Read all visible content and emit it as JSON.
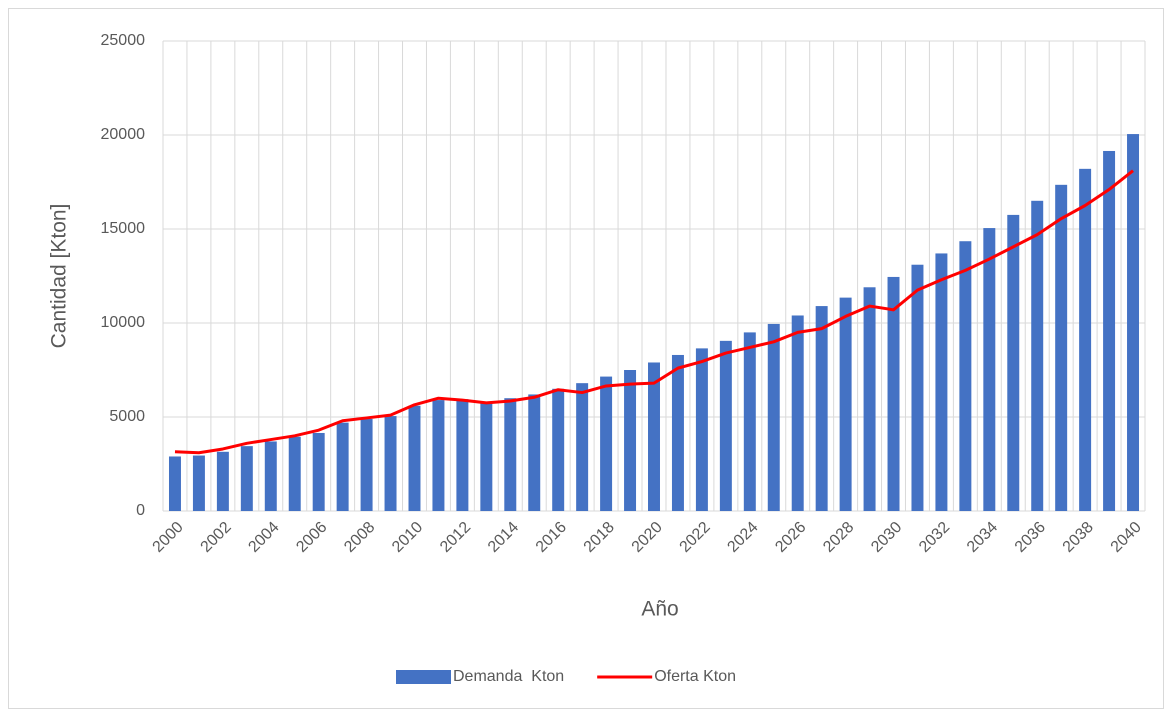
{
  "chart_data": {
    "type": "bar-line",
    "y_label": "Cantidad [Kton]",
    "x_label": "Año",
    "categories": [
      "2000",
      null,
      "2002",
      null,
      "2004",
      null,
      "2006",
      null,
      "2008",
      null,
      "2010",
      null,
      "2012",
      null,
      "2014",
      null,
      "2016",
      null,
      "2018",
      null,
      "2020",
      null,
      "2022",
      null,
      "2024",
      null,
      "2026",
      null,
      "2028",
      null,
      "2030",
      null,
      "2032",
      null,
      "2034",
      null,
      "2036",
      null,
      "2038",
      null,
      "2040"
    ],
    "series": [
      {
        "name": "Demanda  Kton",
        "kind": "bar",
        "color": "#4472c4",
        "values": [
          2900,
          2950,
          3150,
          3450,
          3700,
          3950,
          4150,
          4700,
          4900,
          5050,
          5600,
          5900,
          5950,
          5800,
          6000,
          6200,
          6500,
          6800,
          7150,
          7500,
          7900,
          8300,
          8650,
          9050,
          9500,
          9950,
          10400,
          10900,
          11350,
          11900,
          12450,
          13100,
          13700,
          14350,
          15050,
          15750,
          16500,
          17350,
          18200,
          19150,
          20050
        ]
      },
      {
        "name": "Oferta Kton",
        "kind": "line",
        "color": "#ff0000",
        "values": [
          3150,
          3100,
          3300,
          3600,
          3800,
          4000,
          4300,
          4800,
          4950,
          5100,
          5650,
          6000,
          5900,
          5750,
          5850,
          6050,
          6450,
          6300,
          6650,
          6750,
          6800,
          7600,
          7950,
          8400,
          8700,
          9000,
          9500,
          9700,
          10350,
          10900,
          10700,
          11750,
          12300,
          12800,
          13400,
          14050,
          14700,
          15550,
          16250,
          17100,
          18100
        ]
      }
    ],
    "ylim": [
      0,
      25000
    ],
    "yticks": [
      0,
      5000,
      10000,
      15000,
      20000,
      25000
    ],
    "grid": true,
    "legend": "bottom"
  }
}
